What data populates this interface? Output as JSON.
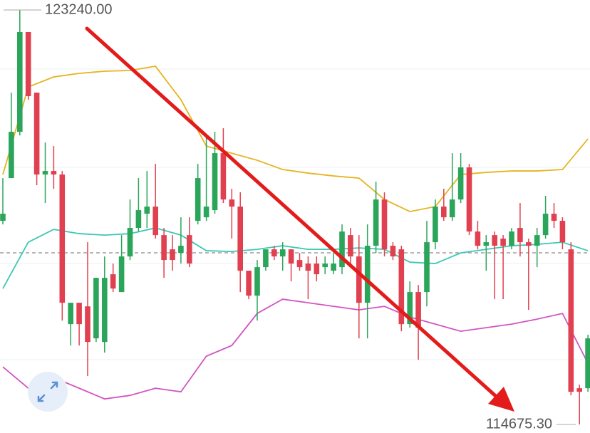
{
  "chart_data": {
    "type": "candlestick",
    "up_color": "#2aa55a",
    "down_color": "#e0404f",
    "max_label": {
      "value": 123240,
      "label": "123240.00"
    },
    "min_label": {
      "value": 114675.3,
      "label": "114675.30"
    },
    "candles": {
      "open": [
        118883,
        119766,
        120723,
        122784,
        121532,
        119840,
        119913,
        119840,
        116748,
        117190,
        117116,
        116454,
        116380,
        117779,
        117411,
        118147,
        118736,
        119030,
        119177,
        118588,
        118294,
        118220,
        118588,
        118883,
        118956,
        119104,
        120281,
        119324,
        119177,
        117852,
        117337,
        117926,
        118294,
        118147,
        118294,
        118073,
        118000,
        118000,
        117926,
        117852,
        117926,
        118588,
        118147,
        117190,
        118368,
        119324,
        118368,
        118294,
        116748,
        117411,
        117411,
        118441,
        119177,
        118956,
        119324,
        119987,
        118662,
        118368,
        118588,
        118515,
        118368,
        118736,
        118441,
        118368,
        118588,
        119030,
        118883,
        118294,
        115424,
        115424
      ],
      "high": [
        119766,
        121532,
        123240,
        122784,
        121532,
        120502,
        120428,
        119913,
        117190,
        117190,
        118441,
        117705,
        118147,
        118000,
        118588,
        119324,
        119766,
        119913,
        120060,
        118736,
        118588,
        118956,
        118956,
        120060,
        120649,
        120723,
        120796,
        119545,
        119472,
        117852,
        118073,
        118294,
        118368,
        118441,
        118294,
        118220,
        118147,
        118147,
        118147,
        118220,
        118809,
        118736,
        118588,
        118809,
        119692,
        119472,
        118441,
        118368,
        117632,
        117558,
        118883,
        119324,
        119545,
        120281,
        120281,
        120060,
        118883,
        118588,
        118662,
        118588,
        118736,
        119251,
        118515,
        118736,
        119398,
        119251,
        118956,
        118441,
        115497,
        116528
      ],
      "low": [
        118809,
        119766,
        120649,
        121385,
        119619,
        119251,
        119545,
        116822,
        116307,
        116307,
        115674,
        116380,
        116160,
        117411,
        117411,
        118073,
        118662,
        118736,
        118515,
        117705,
        117852,
        118000,
        117926,
        118809,
        118883,
        119030,
        119251,
        118515,
        117411,
        117264,
        116822,
        117852,
        118073,
        117852,
        117632,
        117852,
        117264,
        117632,
        117779,
        117779,
        117779,
        117926,
        116454,
        116454,
        118220,
        118147,
        118073,
        116601,
        116675,
        116012,
        117116,
        118294,
        118883,
        118883,
        119251,
        118588,
        118294,
        117852,
        117264,
        117264,
        118294,
        118147,
        117043,
        117926,
        118515,
        118736,
        118294,
        115276,
        114675.3,
        115350
      ],
      "close": [
        119030,
        120723,
        122784,
        121459,
        119840,
        119913,
        119840,
        117190,
        117190,
        116748,
        116380,
        117705,
        117705,
        117484,
        118147,
        118736,
        119104,
        119177,
        118588,
        118073,
        118073,
        118368,
        118000,
        119766,
        119177,
        120281,
        119324,
        119177,
        117852,
        117337,
        117926,
        118294,
        118147,
        118294,
        118000,
        117926,
        117852,
        117779,
        118000,
        118000,
        118662,
        118147,
        117190,
        118368,
        119324,
        118294,
        118147,
        116748,
        117411,
        116675,
        118441,
        119177,
        118956,
        119324,
        119987,
        118662,
        118368,
        118441,
        118368,
        118368,
        118662,
        118441,
        118368,
        118588,
        119030,
        118883,
        118441,
        115350,
        115350,
        116454
      ]
    },
    "bands": [
      {
        "color": "#e5b420",
        "x": [
          0,
          3,
          6,
          9,
          12,
          15,
          18,
          21,
          24,
          27,
          30,
          33,
          36,
          39,
          42,
          45,
          48,
          51,
          54,
          57,
          60,
          63,
          66,
          69
        ],
        "values": [
          119840,
          121650,
          121856,
          121930,
          121974,
          121989,
          122077,
          121385,
          120428,
          120281,
          120134,
          119943,
          119869,
          119810,
          119766,
          119324,
          119074,
          119177,
          119840,
          119884,
          119913,
          119913,
          119943,
          120576
        ]
      },
      {
        "color": "#3cc8b4",
        "x": [
          0,
          3,
          6,
          9,
          12,
          15,
          18,
          21,
          24,
          27,
          30,
          33,
          36,
          39,
          42,
          45,
          48,
          51,
          54,
          57,
          60,
          63,
          66,
          69
        ],
        "values": [
          117484,
          118441,
          118706,
          118618,
          118588,
          118618,
          118736,
          118588,
          118265,
          118250,
          118294,
          118368,
          118294,
          118294,
          118323,
          118294,
          118029,
          118000,
          118220,
          118294,
          118368,
          118397,
          118441,
          118265
        ]
      },
      {
        "color": "#d255c2",
        "x": [
          0,
          3,
          6,
          9,
          12,
          15,
          18,
          21,
          24,
          27,
          30,
          33,
          36,
          39,
          42,
          45,
          48,
          51,
          54,
          57,
          60,
          63,
          66,
          69
        ],
        "values": [
          115865,
          115424,
          115644,
          115424,
          115203,
          115276,
          115424,
          115350,
          116086,
          116307,
          116969,
          117264,
          117190,
          117116,
          117043,
          117116,
          116896,
          116748,
          116601,
          116675,
          116748,
          116852,
          116969,
          115939
        ]
      }
    ]
  }
}
